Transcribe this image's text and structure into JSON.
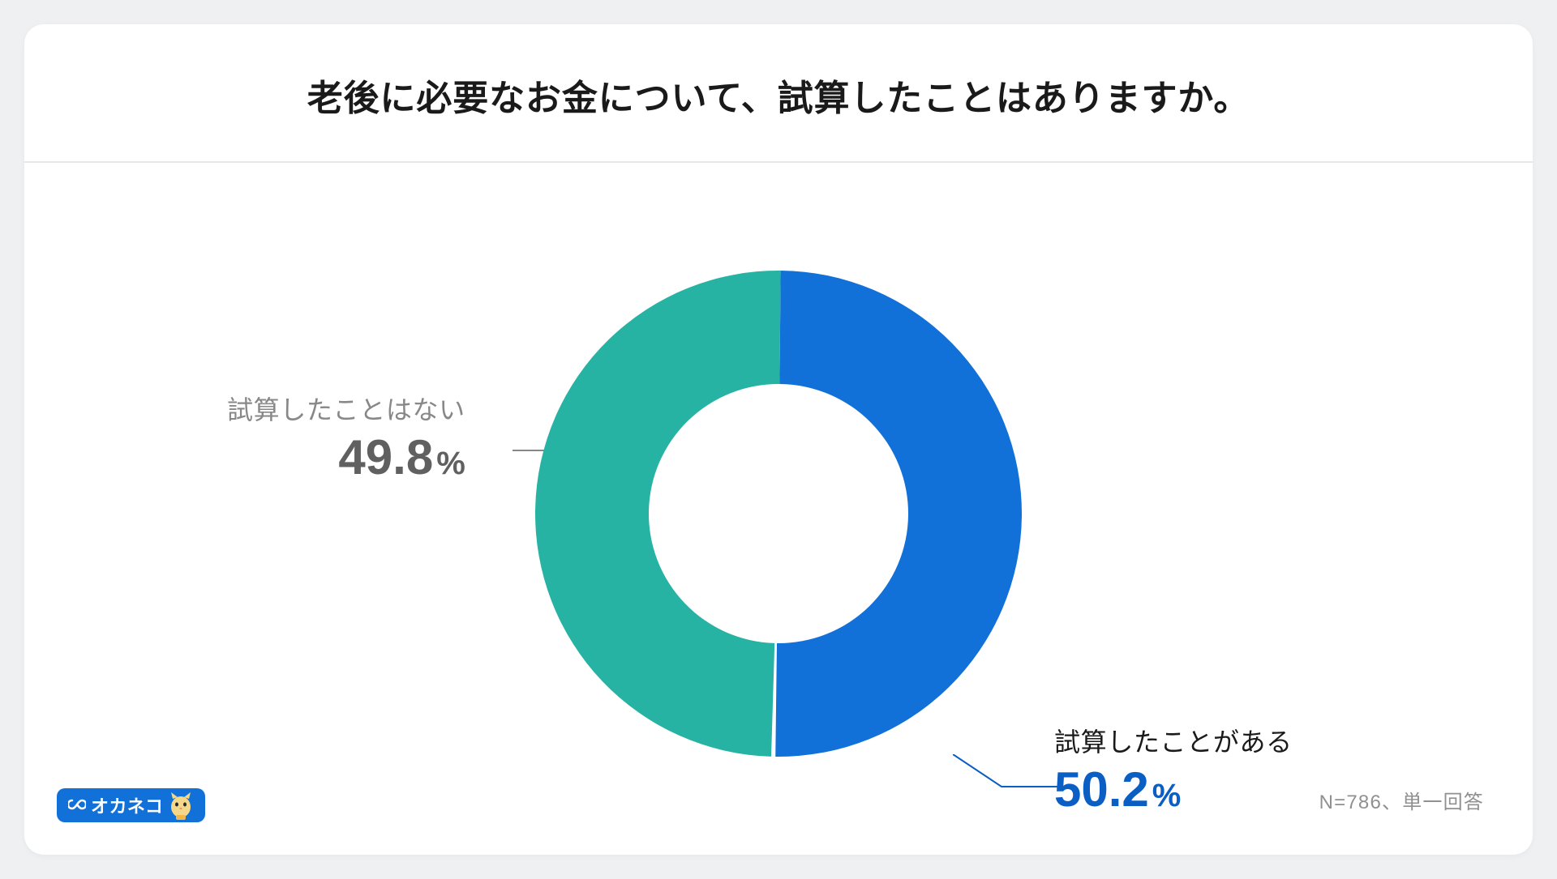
{
  "title": "老後に必要なお金について、試算したことはありますか。",
  "chart": {
    "type": "donut",
    "outer_radius": 300,
    "inner_radius": 160,
    "background_color": "#ffffff",
    "segments": [
      {
        "label": "試算したことがある",
        "value": 50.2,
        "percent_display": "50.2",
        "color": "#1270d9",
        "label_color": "#1a1a1a",
        "value_color": "#0a5ec4",
        "position": "right"
      },
      {
        "label": "試算したことはない",
        "value": 49.8,
        "percent_display": "49.8",
        "color": "#26b3a3",
        "label_color": "#888888",
        "value_color": "#606060",
        "position": "left"
      }
    ],
    "leader_line_color_left": "#888888",
    "leader_line_color_right": "#0a5ec4",
    "percent_symbol": "%"
  },
  "logo": {
    "text": "オカネコ",
    "background_color": "#1270d9",
    "text_color": "#ffffff"
  },
  "footer": {
    "note": "N=786、単一回答",
    "color": "#909090"
  },
  "page": {
    "background": "#eff0f2",
    "card_background": "#ffffff"
  }
}
